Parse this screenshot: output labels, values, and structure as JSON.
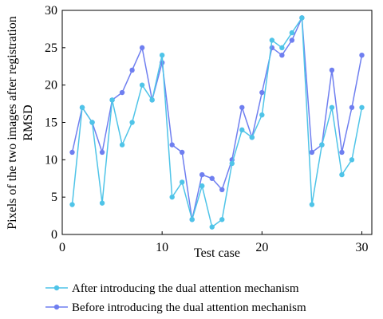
{
  "chart_data": {
    "type": "line",
    "title": "",
    "xlabel": "Test case",
    "ylabel_lines": [
      "Pixels of the two images after registration",
      "RMSD"
    ],
    "xlim": [
      0,
      31
    ],
    "ylim": [
      0,
      30
    ],
    "xticks": [
      0,
      10,
      20,
      30
    ],
    "yticks": [
      0,
      5,
      10,
      15,
      20,
      25,
      30
    ],
    "grid": false,
    "legend_position": "bottom",
    "x": [
      1,
      2,
      3,
      4,
      5,
      6,
      7,
      8,
      9,
      10,
      11,
      12,
      13,
      14,
      15,
      16,
      17,
      18,
      19,
      20,
      21,
      22,
      23,
      24,
      25,
      26,
      27,
      28,
      29,
      30
    ],
    "series": [
      {
        "name": "After introducing the dual attention mechanism",
        "color": "#4fc4e8",
        "values": [
          4,
          17,
          15,
          4.2,
          18,
          12,
          15,
          20,
          18,
          24,
          5,
          7,
          2,
          6.5,
          1,
          2,
          9.5,
          14,
          13,
          16,
          26,
          25,
          27,
          29,
          4,
          12,
          17,
          8,
          10,
          17
        ]
      },
      {
        "name": "Before introducing the dual attention mechanism",
        "color": "#6f7ff0",
        "values": [
          11,
          17,
          15,
          11,
          18,
          19,
          22,
          25,
          18,
          23,
          12,
          11,
          2,
          8,
          7.5,
          6,
          10,
          17,
          13,
          19,
          25,
          24,
          26,
          29,
          11,
          12,
          22,
          11,
          17,
          24
        ]
      }
    ]
  }
}
